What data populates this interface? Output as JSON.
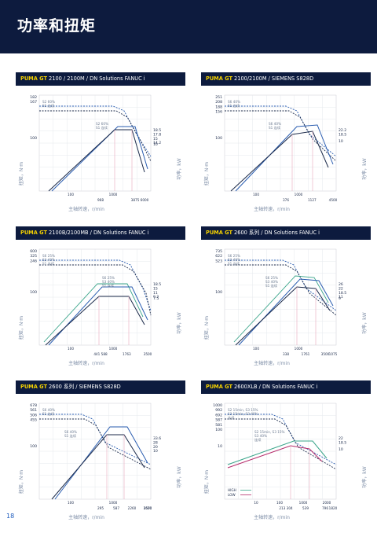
{
  "page": {
    "title": "功率和扭矩",
    "page_number": "18"
  },
  "colors": {
    "navy": "#0d1b3e",
    "brand": "#f5d200",
    "dark": "#1b2a4a",
    "blue": "#2a5db0",
    "teal": "#3aa58a",
    "magenta": "#b52a6a",
    "grid": "#e6e8ec"
  },
  "panels": [
    {
      "brand": "PUMA GT",
      "title": " 2100 / 2100M / DN Solutions FANUC i",
      "left_axis": "扭矩，N·m",
      "right_axis": "功率，kW",
      "x_axis": "主轴转速，r/min",
      "left_ticks": [
        "182",
        "167",
        "100"
      ],
      "right_ticks": [
        "18.5",
        "17.8",
        "15",
        "14.2",
        "10"
      ],
      "x_ticks_top": [
        "100",
        "1000"
      ],
      "x_ticks_bottom": [
        "968",
        "3875 6000"
      ],
      "notes": [
        "S2 60%",
        "S1 连续",
        "S2 60%",
        "S1 连续"
      ]
    },
    {
      "brand": "PUMA GT",
      "title": " 2100/2100M / SIEMENS S828D",
      "left_axis": "扭矩，N·m",
      "right_axis": "功率，kW",
      "x_axis": "主轴转速，r/min",
      "left_ticks": [
        "251",
        "208",
        "188",
        "156",
        "100"
      ],
      "right_ticks": [
        "22.2",
        "18.5",
        "10"
      ],
      "x_ticks_top": [
        "100",
        "1000"
      ],
      "x_ticks_bottom": [
        "376",
        "1127",
        "4500"
      ],
      "notes": [
        "S6 40%",
        "S1 连续",
        "S6 40%",
        "S1 连续"
      ]
    },
    {
      "brand": "PUMA GT",
      "title": " 2100B/2100MB / DN Solutions FANUC i",
      "left_axis": "扭矩，N·m",
      "right_axis": "功率，kW",
      "x_axis": "主轴转速，r/min",
      "left_ticks": [
        "600",
        "325",
        "246",
        "100"
      ],
      "right_ticks": [
        "18.5",
        "15",
        "11",
        "9.2",
        "7.5"
      ],
      "x_ticks_top": [
        "100",
        "1000"
      ],
      "x_ticks_bottom": [
        "441  588",
        "1763",
        "3500"
      ],
      "notes": [
        "S6 25%",
        "S3 40%",
        "S1 连续",
        "S6 25%",
        "S3 40%",
        "S1 连续"
      ]
    },
    {
      "brand": "PUMA GT",
      "title": " 2600 系列 / DN Solutions FANUC i",
      "left_axis": "扭矩，N·m",
      "right_axis": "功率，kW",
      "x_axis": "主轴转速，r/min",
      "left_ticks": [
        "735",
        "622",
        "523",
        "100"
      ],
      "right_ticks": [
        "26",
        "22",
        "18.5",
        "11",
        "9"
      ],
      "x_ticks_top": [
        "100",
        "1000"
      ],
      "x_ticks_bottom": [
        "338",
        "1761",
        "3500",
        "1075"
      ],
      "notes": [
        "S6 25%",
        "S3 40%",
        "S1 连续",
        "S6 25%",
        "S3 40%",
        "S1 连续"
      ]
    },
    {
      "brand": "PUMA GT",
      "title": " 2600 系列 / SIEMENS S828D",
      "left_axis": "扭矩，N·m",
      "right_axis": "功率，kW",
      "x_axis": "主轴转速，r/min",
      "left_ticks": [
        "678",
        "561",
        "506",
        "455",
        "100"
      ],
      "right_ticks": [
        "33.6",
        "28",
        "20",
        "10"
      ],
      "x_ticks_top": [
        "100",
        "1000"
      ],
      "x_ticks_bottom": [
        "295",
        "587",
        "2260",
        "3500",
        "1670"
      ],
      "notes": [
        "S6 40%",
        "S1 连续",
        "S6 40%",
        "S1 连续"
      ]
    },
    {
      "brand": "PUMA GT",
      "title": " 2600XLB / DN Solutions FANUC i",
      "left_axis": "扭矩，N·m",
      "right_axis": "功率，kW",
      "x_axis": "主轴转速，r/min",
      "left_ticks": [
        "1000",
        "992",
        "692",
        "587",
        "581",
        "100",
        "10"
      ],
      "right_ticks": [
        "22",
        "18.5",
        "10"
      ],
      "x_ticks_top": [
        "10",
        "100",
        "1000",
        "2000"
      ],
      "x_ticks_bottom": [
        "213  304",
        "539",
        "796",
        "1820"
      ],
      "notes": [
        "S2 15min, S3 15%",
        "S3 15min, S3 40%",
        "连续",
        "S2 15min, S3 15%",
        "S3 40%",
        "连续"
      ],
      "legend": [
        {
          "name": "HIGH"
        },
        {
          "name": "LOW"
        }
      ]
    }
  ]
}
